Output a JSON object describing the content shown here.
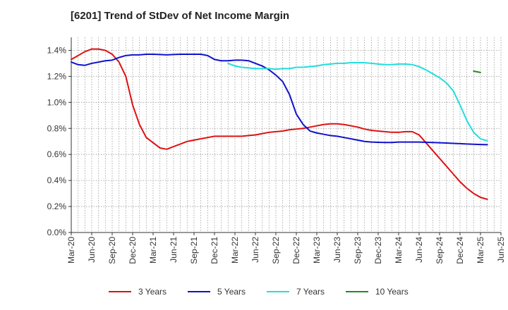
{
  "chart_data": {
    "type": "line",
    "title": "[6201]  Trend of StDev of Net Income Margin",
    "xlabel": "",
    "ylabel": "",
    "ylim": [
      0,
      1.5
    ],
    "grid": true,
    "legend_position": "bottom",
    "y_ticks": [
      "0.0%",
      "0.2%",
      "0.4%",
      "0.6%",
      "0.8%",
      "1.0%",
      "1.2%",
      "1.4%"
    ],
    "y_tick_values": [
      0,
      0.2,
      0.4,
      0.6,
      0.8,
      1.0,
      1.2,
      1.4
    ],
    "x_ticks": [
      "Mar-20",
      "Jun-20",
      "Sep-20",
      "Dec-20",
      "Mar-21",
      "Jun-21",
      "Sep-21",
      "Dec-21",
      "Mar-22",
      "Jun-22",
      "Sep-22",
      "Dec-22",
      "Mar-23",
      "Jun-23",
      "Sep-23",
      "Dec-23",
      "Mar-24",
      "Jun-24",
      "Sep-24",
      "Dec-24",
      "Mar-25",
      "Jun-25"
    ],
    "x_month_labels": [
      "Mar-20",
      "Apr-20",
      "May-20",
      "Jun-20",
      "Jul-20",
      "Aug-20",
      "Sep-20",
      "Oct-20",
      "Nov-20",
      "Dec-20",
      "Jan-21",
      "Feb-21",
      "Mar-21",
      "Apr-21",
      "May-21",
      "Jun-21",
      "Jul-21",
      "Aug-21",
      "Sep-21",
      "Oct-21",
      "Nov-21",
      "Dec-21",
      "Jan-22",
      "Feb-22",
      "Mar-22",
      "Apr-22",
      "May-22",
      "Jun-22",
      "Jul-22",
      "Aug-22",
      "Sep-22",
      "Oct-22",
      "Nov-22",
      "Dec-22",
      "Jan-23",
      "Feb-23",
      "Mar-23",
      "Apr-23",
      "May-23",
      "Jun-23",
      "Jul-23",
      "Aug-23",
      "Sep-23",
      "Oct-23",
      "Nov-23",
      "Dec-23",
      "Jan-24",
      "Feb-24",
      "Mar-24",
      "Apr-24",
      "May-24",
      "Jun-24",
      "Jul-24",
      "Aug-24",
      "Sep-24",
      "Oct-24",
      "Nov-24",
      "Dec-24",
      "Jan-25",
      "Feb-25",
      "Mar-25",
      "Apr-25",
      "May-25",
      "Jun-25"
    ],
    "series": [
      {
        "name": "3 Years",
        "color": "#dd1111",
        "start": "Mar-20",
        "values": [
          1.33,
          1.36,
          1.39,
          1.41,
          1.41,
          1.4,
          1.37,
          1.31,
          1.2,
          0.98,
          0.83,
          0.73,
          0.69,
          0.65,
          0.64,
          0.66,
          0.68,
          0.7,
          0.71,
          0.72,
          0.73,
          0.74,
          0.74,
          0.74,
          0.74,
          0.74,
          0.745,
          0.75,
          0.76,
          0.77,
          0.775,
          0.78,
          0.79,
          0.795,
          0.8,
          0.81,
          0.82,
          0.83,
          0.835,
          0.835,
          0.83,
          0.82,
          0.81,
          0.795,
          0.785,
          0.78,
          0.775,
          0.77,
          0.77,
          0.775,
          0.775,
          0.75,
          0.69,
          0.63,
          0.57,
          0.51,
          0.45,
          0.39,
          0.34,
          0.3,
          0.27,
          0.255
        ]
      },
      {
        "name": "5 Years",
        "color": "#1111cc",
        "start": "Mar-20",
        "values": [
          1.31,
          1.29,
          1.285,
          1.3,
          1.31,
          1.32,
          1.325,
          1.345,
          1.36,
          1.365,
          1.365,
          1.37,
          1.37,
          1.368,
          1.365,
          1.368,
          1.37,
          1.37,
          1.37,
          1.37,
          1.36,
          1.33,
          1.32,
          1.32,
          1.325,
          1.325,
          1.32,
          1.3,
          1.28,
          1.25,
          1.21,
          1.16,
          1.06,
          0.91,
          0.83,
          0.78,
          0.765,
          0.755,
          0.745,
          0.74,
          0.73,
          0.72,
          0.71,
          0.7,
          0.695,
          0.693,
          0.692,
          0.692,
          0.695,
          0.695,
          0.695,
          0.695,
          0.693,
          0.692,
          0.69,
          0.688,
          0.685,
          0.683,
          0.68,
          0.678,
          0.676,
          0.675
        ]
      },
      {
        "name": "7 Years",
        "color": "#22dddd",
        "start": "Feb-22",
        "values": [
          1.3,
          1.28,
          1.27,
          1.265,
          1.26,
          1.26,
          1.26,
          1.255,
          1.26,
          1.26,
          1.27,
          1.27,
          1.275,
          1.28,
          1.29,
          1.295,
          1.3,
          1.3,
          1.305,
          1.305,
          1.305,
          1.3,
          1.295,
          1.29,
          1.29,
          1.295,
          1.295,
          1.29,
          1.275,
          1.25,
          1.22,
          1.19,
          1.15,
          1.09,
          0.98,
          0.86,
          0.77,
          0.72,
          0.705
        ]
      },
      {
        "name": "10 Years",
        "color": "#228b22",
        "start": "Feb-25",
        "values": [
          1.24,
          1.23
        ]
      }
    ]
  }
}
